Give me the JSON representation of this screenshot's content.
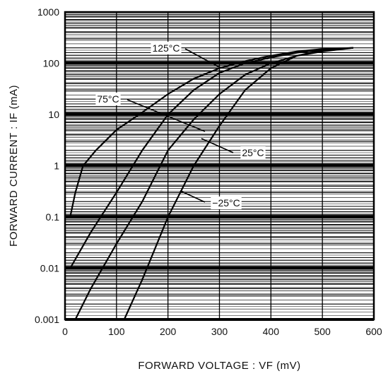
{
  "chart_data": {
    "type": "line",
    "xlabel": "FORWARD VOLTAGE : VF (mV)",
    "ylabel": "FORWARD CURRENT : IF (mA)",
    "x_ticks": [
      "0",
      "100",
      "200",
      "300",
      "400",
      "500",
      "600"
    ],
    "y_ticks": [
      "0.001",
      "0.01",
      "0.1",
      "1",
      "10",
      "100",
      "1000"
    ],
    "xlim": [
      0,
      600
    ],
    "ylim": [
      0.001,
      1000
    ],
    "y_scale": "log",
    "grid": true,
    "series": [
      {
        "name": "125°C",
        "x": [
          10,
          20,
          35,
          60,
          100,
          150,
          200,
          250,
          300,
          350,
          400,
          450,
          500,
          560
        ],
        "y": [
          0.1,
          0.3,
          1,
          2,
          5,
          11,
          25,
          50,
          80,
          110,
          140,
          170,
          190,
          200
        ]
      },
      {
        "name": "75°C",
        "x": [
          10,
          50,
          100,
          150,
          200,
          250,
          300,
          350,
          400,
          450,
          500,
          560
        ],
        "y": [
          0.01,
          0.05,
          0.3,
          2,
          10,
          30,
          65,
          100,
          130,
          160,
          185,
          200
        ]
      },
      {
        "name": "25°C",
        "x": [
          20,
          50,
          100,
          150,
          200,
          250,
          300,
          350,
          400,
          450,
          500,
          560
        ],
        "y": [
          0.001,
          0.004,
          0.03,
          0.2,
          2,
          8,
          25,
          60,
          100,
          140,
          170,
          200
        ]
      },
      {
        "name": "−25°C",
        "x": [
          115,
          150,
          200,
          250,
          300,
          350,
          400,
          450,
          500,
          560
        ],
        "y": [
          0.001,
          0.006,
          0.1,
          1,
          6,
          30,
          80,
          140,
          180,
          200
        ]
      }
    ],
    "annotations": [
      {
        "text": "125°C",
        "series": 0
      },
      {
        "text": "75°C",
        "series": 1
      },
      {
        "text": "25°C",
        "series": 2
      },
      {
        "text": "−25°C",
        "series": 3
      }
    ]
  }
}
